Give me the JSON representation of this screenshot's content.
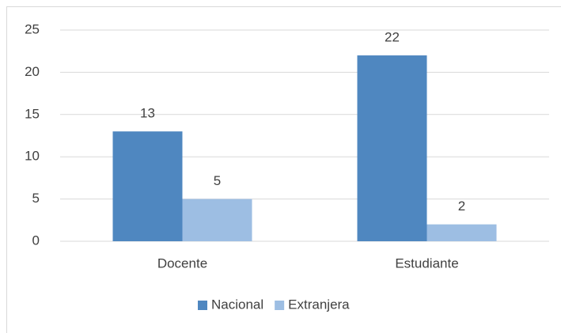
{
  "chart_data": {
    "type": "bar",
    "categories": [
      "Docente",
      "Estudiante"
    ],
    "series": [
      {
        "name": "Nacional",
        "color": "#4f87c0",
        "values": [
          13,
          22
        ]
      },
      {
        "name": "Extranjera",
        "color": "#9dbee3",
        "values": [
          5,
          2
        ]
      }
    ],
    "ylim": [
      0,
      25
    ],
    "yticks": [
      0,
      5,
      10,
      15,
      20,
      25
    ],
    "grid": true,
    "legend": "bottom"
  }
}
